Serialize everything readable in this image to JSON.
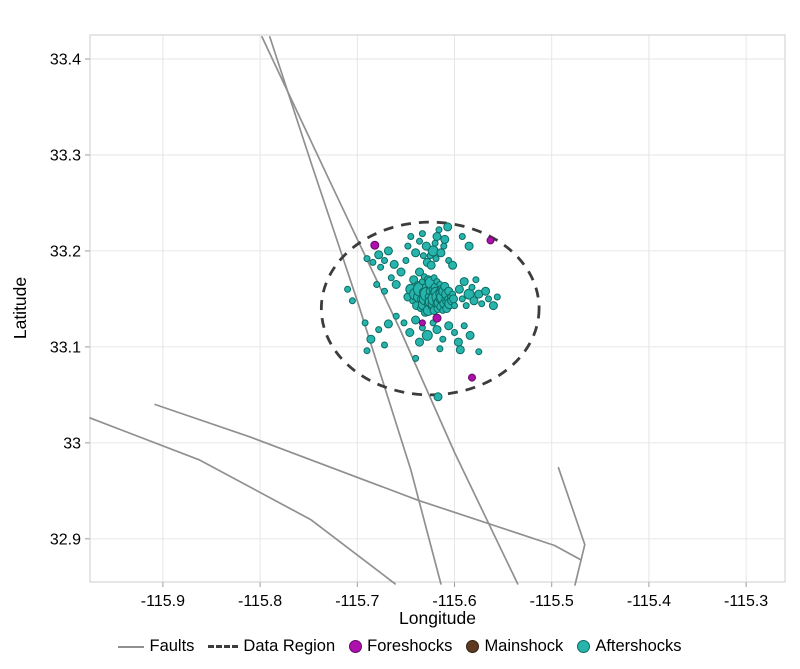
{
  "legend": {
    "items": [
      {
        "label": "Faults",
        "swatch": "line"
      },
      {
        "label": "Data Region",
        "swatch": "dashed"
      },
      {
        "label": "Foreshocks",
        "swatch": "dot"
      },
      {
        "label": "Mainshock",
        "swatch": "dot"
      },
      {
        "label": "Aftershocks",
        "swatch": "dot"
      }
    ]
  },
  "chart_data": {
    "type": "scatter",
    "title": "",
    "xlabel": "Longitude",
    "ylabel": "Latitude",
    "xlim": [
      -115.975,
      -115.26
    ],
    "ylim": [
      32.855,
      33.425
    ],
    "grid": true,
    "legend_position": "bottom",
    "x_ticks": [
      -115.9,
      -115.8,
      -115.7,
      -115.6,
      -115.5,
      -115.4,
      -115.3
    ],
    "x_tick_labels": [
      "-115.9",
      "-115.8",
      "-115.7",
      "-115.6",
      "-115.5",
      "-115.4",
      "-115.3"
    ],
    "y_ticks": [
      32.9,
      33,
      33.1,
      33.2,
      33.3,
      33.4
    ],
    "y_tick_labels": [
      "32.9",
      "33",
      "33.1",
      "33.2",
      "33.3",
      "33.4"
    ],
    "style": {
      "grid": "#e6e6e6",
      "frame": "#cccccc",
      "tick": "#9b9b9b",
      "fault": "#909090",
      "region": "#3c3c3c",
      "text": "#000000",
      "background": "#ffffff"
    },
    "faults": [
      [
        [
          -115.798,
          33.423
        ],
        [
          -115.728,
          33.272
        ],
        [
          -115.656,
          33.118
        ],
        [
          -115.6,
          32.99
        ],
        [
          -115.535,
          32.853
        ]
      ],
      [
        [
          -115.79,
          33.423
        ],
        [
          -115.746,
          33.287
        ],
        [
          -115.7,
          33.148
        ],
        [
          -115.645,
          32.972
        ],
        [
          -115.614,
          32.853
        ]
      ],
      [
        [
          -115.975,
          33.026
        ],
        [
          -115.862,
          32.982
        ],
        [
          -115.748,
          32.92
        ],
        [
          -115.661,
          32.853
        ]
      ],
      [
        [
          -115.908,
          33.04
        ],
        [
          -115.81,
          33.006
        ]
      ],
      [
        [
          -115.81,
          33.006
        ],
        [
          -115.637,
          32.94
        ],
        [
          -115.497,
          32.893
        ],
        [
          -115.47,
          32.878
        ]
      ],
      [
        [
          -115.493,
          32.974
        ],
        [
          -115.466,
          32.894
        ],
        [
          -115.476,
          32.852
        ]
      ]
    ],
    "data_region": {
      "center": [
        -115.625,
        33.14
      ],
      "rx": 0.112,
      "ry": 0.09
    },
    "series": [
      {
        "name": "Foreshocks",
        "color": "#ad10ad",
        "edge": "#640b64",
        "points": [
          [
            -115.682,
            33.206,
            4
          ],
          [
            -115.563,
            33.211,
            3.5
          ],
          [
            -115.618,
            33.13,
            4
          ],
          [
            -115.582,
            33.068,
            3.5
          ],
          [
            -115.633,
            33.125,
            3
          ]
        ]
      },
      {
        "name": "Mainshock",
        "color": "#5f3a20",
        "edge": "#33200f",
        "points": [
          [
            -115.627,
            33.154,
            5
          ]
        ]
      },
      {
        "name": "Aftershocks",
        "color": "#26b4ac",
        "edge": "#0d6b62",
        "points": [
          [
            -115.648,
            33.152,
            4
          ],
          [
            -115.645,
            33.16,
            5
          ],
          [
            -115.643,
            33.148,
            3
          ],
          [
            -115.642,
            33.17,
            4
          ],
          [
            -115.64,
            33.155,
            6
          ],
          [
            -115.639,
            33.143,
            4
          ],
          [
            -115.638,
            33.165,
            3
          ],
          [
            -115.637,
            33.152,
            5
          ],
          [
            -115.636,
            33.178,
            4
          ],
          [
            -115.635,
            33.14,
            3
          ],
          [
            -115.635,
            33.16,
            7
          ],
          [
            -115.634,
            33.15,
            4
          ],
          [
            -115.633,
            33.168,
            3
          ],
          [
            -115.632,
            33.144,
            5
          ],
          [
            -115.632,
            33.157,
            4
          ],
          [
            -115.631,
            33.173,
            3
          ],
          [
            -115.63,
            33.136,
            4
          ],
          [
            -115.63,
            33.15,
            6
          ],
          [
            -115.629,
            33.162,
            4
          ],
          [
            -115.628,
            33.145,
            3
          ],
          [
            -115.628,
            33.155,
            7
          ],
          [
            -115.627,
            33.17,
            4
          ],
          [
            -115.627,
            33.138,
            5
          ],
          [
            -115.626,
            33.152,
            4
          ],
          [
            -115.626,
            33.163,
            3
          ],
          [
            -115.625,
            33.147,
            5
          ],
          [
            -115.625,
            33.158,
            4
          ],
          [
            -115.624,
            33.142,
            3
          ],
          [
            -115.624,
            33.167,
            6
          ],
          [
            -115.623,
            33.15,
            4
          ],
          [
            -115.623,
            33.16,
            3
          ],
          [
            -115.622,
            33.145,
            5
          ],
          [
            -115.622,
            33.155,
            4
          ],
          [
            -115.621,
            33.172,
            3
          ],
          [
            -115.621,
            33.138,
            4
          ],
          [
            -115.62,
            33.15,
            7
          ],
          [
            -115.62,
            33.162,
            4
          ],
          [
            -115.619,
            33.144,
            3
          ],
          [
            -115.619,
            33.157,
            5
          ],
          [
            -115.618,
            33.148,
            4
          ],
          [
            -115.618,
            33.168,
            3
          ],
          [
            -115.617,
            33.152,
            6
          ],
          [
            -115.617,
            33.14,
            4
          ],
          [
            -115.616,
            33.158,
            3
          ],
          [
            -115.616,
            33.146,
            5
          ],
          [
            -115.615,
            33.15,
            4
          ],
          [
            -115.615,
            33.165,
            3
          ],
          [
            -115.614,
            33.142,
            4
          ],
          [
            -115.614,
            33.155,
            5
          ],
          [
            -115.613,
            33.148,
            3
          ],
          [
            -115.613,
            33.16,
            4
          ],
          [
            -115.612,
            33.152,
            6
          ],
          [
            -115.612,
            33.138,
            3
          ],
          [
            -115.611,
            33.145,
            4
          ],
          [
            -115.611,
            33.158,
            5
          ],
          [
            -115.61,
            33.15,
            3
          ],
          [
            -115.61,
            33.163,
            4
          ],
          [
            -115.609,
            33.147,
            3
          ],
          [
            -115.608,
            33.155,
            5
          ],
          [
            -115.608,
            33.14,
            4
          ],
          [
            -115.607,
            33.15,
            3
          ],
          [
            -115.606,
            33.158,
            4
          ],
          [
            -115.605,
            33.145,
            5
          ],
          [
            -115.604,
            33.152,
            3
          ],
          [
            -115.603,
            33.148,
            4
          ],
          [
            -115.602,
            33.155,
            3
          ],
          [
            -115.601,
            33.15,
            4
          ],
          [
            -115.6,
            33.143,
            3
          ],
          [
            -115.628,
            33.188,
            4
          ],
          [
            -115.625,
            33.195,
            3
          ],
          [
            -115.622,
            33.2,
            5
          ],
          [
            -115.62,
            33.208,
            3
          ],
          [
            -115.618,
            33.215,
            4
          ],
          [
            -115.616,
            33.222,
            3
          ],
          [
            -115.624,
            33.185,
            4
          ],
          [
            -115.619,
            33.192,
            3
          ],
          [
            -115.614,
            33.198,
            4
          ],
          [
            -115.611,
            33.205,
            3
          ],
          [
            -115.629,
            33.205,
            4
          ],
          [
            -115.632,
            33.195,
            3
          ],
          [
            -115.61,
            33.212,
            4
          ],
          [
            -115.606,
            33.19,
            3
          ],
          [
            -115.602,
            33.185,
            4
          ],
          [
            -115.648,
            33.205,
            3
          ],
          [
            -115.64,
            33.198,
            4
          ],
          [
            -115.636,
            33.21,
            3
          ],
          [
            -115.633,
            33.218,
            3
          ],
          [
            -115.645,
            33.215,
            3
          ],
          [
            -115.678,
            33.196,
            4
          ],
          [
            -115.672,
            33.19,
            3
          ],
          [
            -115.668,
            33.2,
            4
          ],
          [
            -115.684,
            33.188,
            3
          ],
          [
            -115.676,
            33.183,
            3
          ],
          [
            -115.662,
            33.186,
            4
          ],
          [
            -115.69,
            33.192,
            3
          ],
          [
            -115.607,
            33.225,
            4
          ],
          [
            -115.592,
            33.215,
            3
          ],
          [
            -115.585,
            33.205,
            4
          ],
          [
            -115.595,
            33.16,
            4
          ],
          [
            -115.592,
            33.15,
            3
          ],
          [
            -115.59,
            33.168,
            4
          ],
          [
            -115.588,
            33.143,
            3
          ],
          [
            -115.585,
            33.155,
            5
          ],
          [
            -115.582,
            33.162,
            3
          ],
          [
            -115.58,
            33.148,
            4
          ],
          [
            -115.578,
            33.17,
            3
          ],
          [
            -115.575,
            33.155,
            4
          ],
          [
            -115.572,
            33.145,
            3
          ],
          [
            -115.568,
            33.158,
            4
          ],
          [
            -115.565,
            33.15,
            3
          ],
          [
            -115.56,
            33.143,
            4
          ],
          [
            -115.556,
            33.152,
            3
          ],
          [
            -115.64,
            33.128,
            4
          ],
          [
            -115.633,
            33.12,
            3
          ],
          [
            -115.628,
            33.112,
            5
          ],
          [
            -115.622,
            33.125,
            3
          ],
          [
            -115.618,
            33.118,
            4
          ],
          [
            -115.612,
            33.108,
            3
          ],
          [
            -115.606,
            33.122,
            4
          ],
          [
            -115.6,
            33.115,
            3
          ],
          [
            -115.646,
            33.115,
            4
          ],
          [
            -115.652,
            33.125,
            3
          ],
          [
            -115.636,
            33.105,
            4
          ],
          [
            -115.615,
            33.098,
            3
          ],
          [
            -115.596,
            33.105,
            4
          ],
          [
            -115.59,
            33.122,
            3
          ],
          [
            -115.584,
            33.112,
            4
          ],
          [
            -115.66,
            33.132,
            3
          ],
          [
            -115.668,
            33.124,
            4
          ],
          [
            -115.594,
            33.097,
            4
          ],
          [
            -115.678,
            33.118,
            3
          ],
          [
            -115.686,
            33.108,
            4
          ],
          [
            -115.672,
            33.102,
            3
          ],
          [
            -115.692,
            33.125,
            3
          ],
          [
            -115.69,
            33.096,
            3
          ],
          [
            -115.617,
            33.048,
            4
          ],
          [
            -115.64,
            33.088,
            3
          ],
          [
            -115.575,
            33.095,
            3
          ],
          [
            -115.705,
            33.148,
            3
          ],
          [
            -115.71,
            33.16,
            3
          ],
          [
            -115.66,
            33.165,
            4
          ],
          [
            -115.665,
            33.172,
            3
          ],
          [
            -115.672,
            33.158,
            3
          ],
          [
            -115.68,
            33.165,
            3
          ],
          [
            -115.655,
            33.178,
            4
          ],
          [
            -115.65,
            33.19,
            3
          ]
        ]
      }
    ]
  }
}
